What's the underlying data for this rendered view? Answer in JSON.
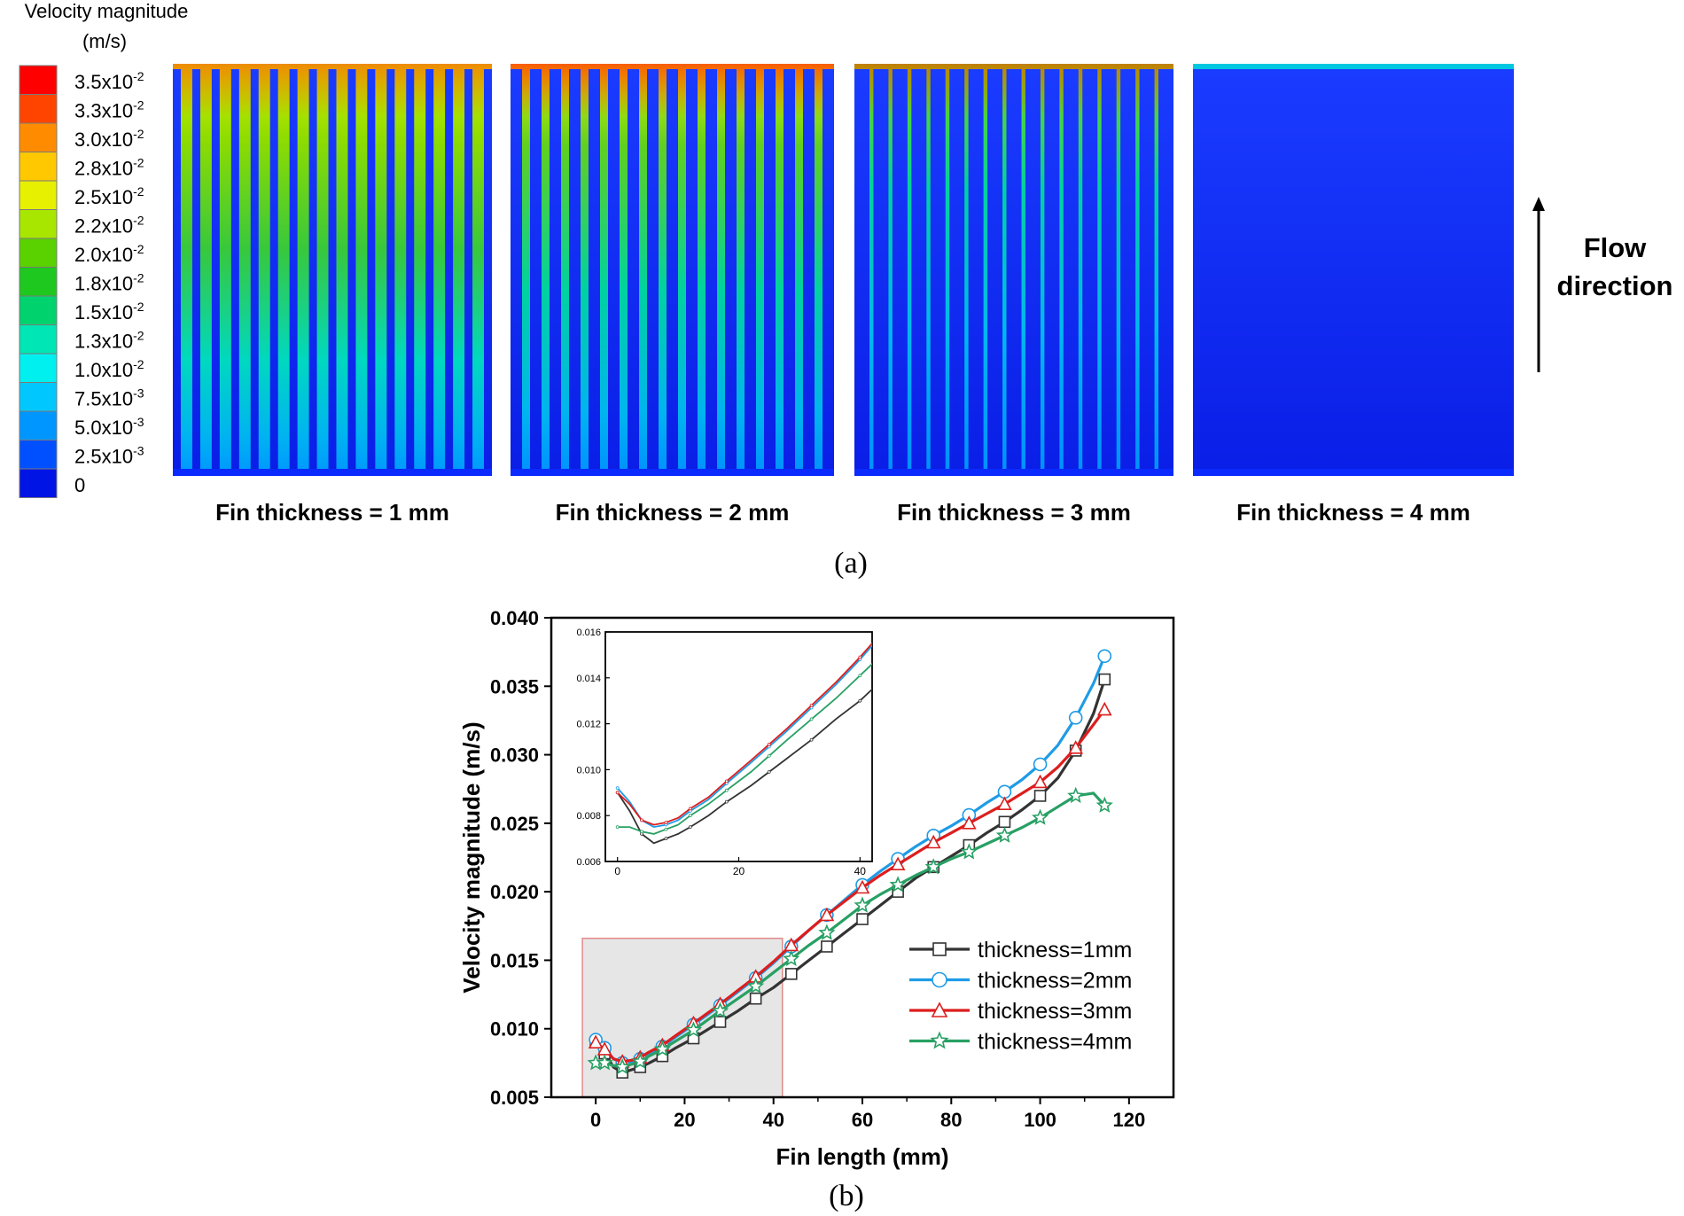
{
  "legend_scale": {
    "title_line1": "Velocity magnitude",
    "title_line2": "(m/s)",
    "levels": [
      {
        "label": "3.5x10",
        "exp": "-2",
        "color": "#ff0000"
      },
      {
        "label": "3.3x10",
        "exp": "-2",
        "color": "#ff4400"
      },
      {
        "label": "3.0x10",
        "exp": "-2",
        "color": "#ff8c00"
      },
      {
        "label": "2.8x10",
        "exp": "-2",
        "color": "#ffc800"
      },
      {
        "label": "2.5x10",
        "exp": "-2",
        "color": "#e6f000"
      },
      {
        "label": "2.2x10",
        "exp": "-2",
        "color": "#a8e600"
      },
      {
        "label": "2.0x10",
        "exp": "-2",
        "color": "#5ad200"
      },
      {
        "label": "1.8x10",
        "exp": "-2",
        "color": "#1ec81e"
      },
      {
        "label": "1.5x10",
        "exp": "-2",
        "color": "#00d26e"
      },
      {
        "label": "1.3x10",
        "exp": "-2",
        "color": "#00e6b4"
      },
      {
        "label": "1.0x10",
        "exp": "-2",
        "color": "#00f0f0"
      },
      {
        "label": "7.5x10",
        "exp": "-3",
        "color": "#00c8ff"
      },
      {
        "label": "5.0x10",
        "exp": "-3",
        "color": "#0096ff"
      },
      {
        "label": "2.5x10",
        "exp": "-3",
        "color": "#0050ff"
      },
      {
        "label": "0",
        "exp": "",
        "color": "#0014e6"
      }
    ]
  },
  "panel_a": {
    "contours": [
      {
        "label": "Fin thickness = 1 mm",
        "tone": "green"
      },
      {
        "label": "Fin thickness = 2 mm",
        "tone": "mixed"
      },
      {
        "label": "Fin thickness = 3 mm",
        "tone": "blue"
      },
      {
        "label": "Fin thickness = 4 mm",
        "tone": "deepblue"
      }
    ],
    "flow_line1": "Flow",
    "flow_line2": "direction",
    "caption": "(a)"
  },
  "caption_b": "(b)",
  "chart_data": {
    "type": "line",
    "xlabel": "Fin length (mm)",
    "ylabel": "Velocity magnitude (m/s)",
    "xlim": [
      -10,
      130
    ],
    "ylim": [
      0.005,
      0.04
    ],
    "xticks": [
      0,
      20,
      40,
      60,
      80,
      100,
      120
    ],
    "yticks": [
      0.005,
      0.01,
      0.015,
      0.02,
      0.025,
      0.03,
      0.035,
      0.04
    ],
    "ytick_labels": [
      "0.005",
      "0.010",
      "0.015",
      "0.020",
      "0.025",
      "0.030",
      "0.035",
      "0.040"
    ],
    "x": [
      0,
      2,
      4,
      6,
      8,
      10,
      12,
      15,
      18,
      22,
      25,
      28,
      32,
      36,
      40,
      44,
      48,
      52,
      56,
      60,
      64,
      68,
      72,
      76,
      80,
      84,
      88,
      92,
      96,
      100,
      104,
      108,
      112,
      114.5
    ],
    "series": [
      {
        "name": "thickness=1mm",
        "color": "#333333",
        "marker": "square",
        "values": [
          0.009,
          0.0082,
          0.0072,
          0.0068,
          0.007,
          0.0072,
          0.0075,
          0.008,
          0.0086,
          0.0093,
          0.0099,
          0.0105,
          0.0113,
          0.0122,
          0.013,
          0.014,
          0.015,
          0.016,
          0.017,
          0.018,
          0.019,
          0.02,
          0.021,
          0.0218,
          0.0226,
          0.0234,
          0.0243,
          0.0251,
          0.026,
          0.027,
          0.0283,
          0.0303,
          0.033,
          0.0355
        ]
      },
      {
        "name": "thickness=2mm",
        "color": "#1e9be6",
        "marker": "circle",
        "values": [
          0.0092,
          0.0086,
          0.0078,
          0.0075,
          0.0076,
          0.0078,
          0.0082,
          0.0087,
          0.0094,
          0.0103,
          0.011,
          0.0117,
          0.0127,
          0.0137,
          0.0148,
          0.016,
          0.0172,
          0.0183,
          0.0194,
          0.0205,
          0.0215,
          0.0224,
          0.0233,
          0.0241,
          0.0248,
          0.0256,
          0.0265,
          0.0273,
          0.0282,
          0.0293,
          0.0307,
          0.0327,
          0.0352,
          0.0372
        ]
      },
      {
        "name": "thickness=3mm",
        "color": "#dc1e1e",
        "marker": "triangle",
        "values": [
          0.009,
          0.0085,
          0.0078,
          0.0076,
          0.0077,
          0.0079,
          0.0083,
          0.0088,
          0.0095,
          0.0104,
          0.0111,
          0.0118,
          0.0128,
          0.0138,
          0.0149,
          0.0161,
          0.0172,
          0.0183,
          0.0193,
          0.0203,
          0.0212,
          0.022,
          0.0228,
          0.0236,
          0.0243,
          0.025,
          0.0257,
          0.0264,
          0.0272,
          0.028,
          0.0291,
          0.0305,
          0.0322,
          0.0333
        ]
      },
      {
        "name": "thickness=4mm",
        "color": "#28a064",
        "marker": "star",
        "values": [
          0.0075,
          0.0075,
          0.0073,
          0.0072,
          0.0074,
          0.0076,
          0.008,
          0.0085,
          0.0091,
          0.0099,
          0.0106,
          0.0113,
          0.0122,
          0.0131,
          0.0141,
          0.0151,
          0.0161,
          0.017,
          0.018,
          0.019,
          0.0198,
          0.0205,
          0.0212,
          0.0218,
          0.0224,
          0.0229,
          0.0235,
          0.0241,
          0.0247,
          0.0254,
          0.0262,
          0.027,
          0.0272,
          0.0263
        ]
      }
    ],
    "highlight_region": {
      "x": [
        -3,
        42
      ],
      "y": [
        0.005,
        0.0166
      ]
    },
    "inset": {
      "xlim": [
        -2,
        42
      ],
      "ylim": [
        0.006,
        0.016
      ],
      "xticks": [
        0,
        20,
        40
      ],
      "yticks": [
        0.006,
        0.008,
        0.01,
        0.012,
        0.014,
        0.016
      ],
      "ytick_labels": [
        "0.006",
        "0.008",
        "0.010",
        "0.012",
        "0.014",
        "0.016"
      ]
    }
  }
}
